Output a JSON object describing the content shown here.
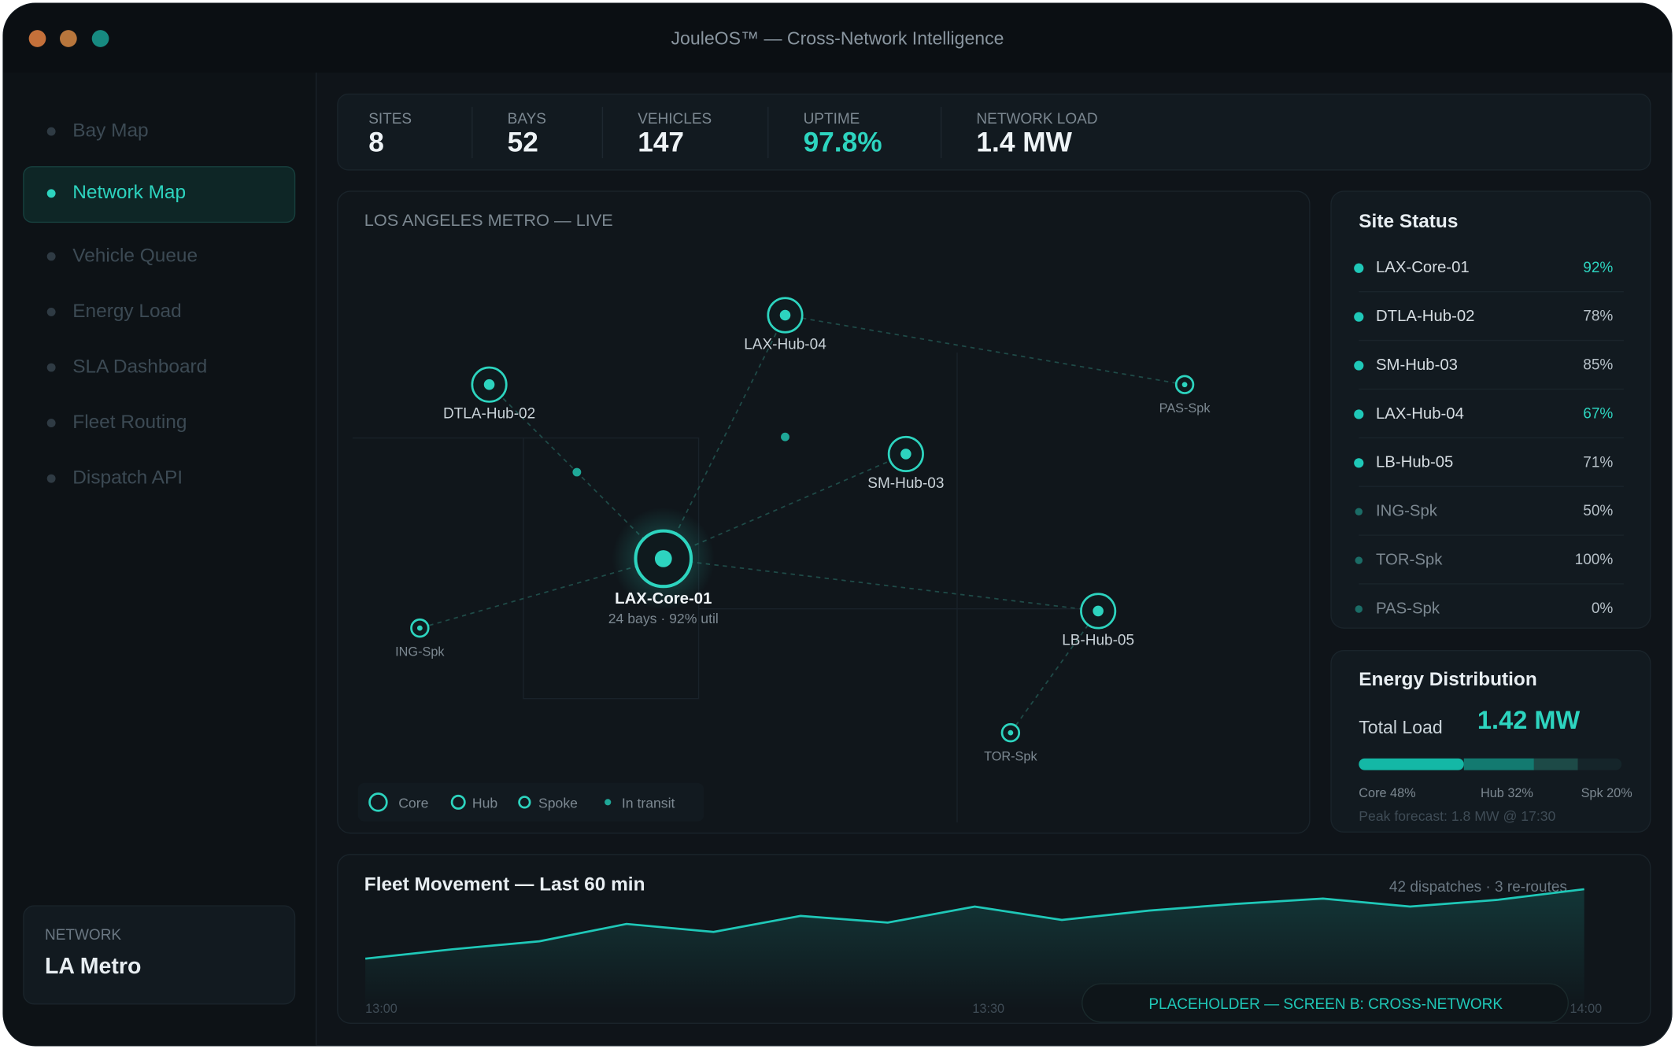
{
  "window": {
    "title": "JouleOS™ — Cross-Network Intelligence"
  },
  "sidebar": {
    "items": [
      "Bay Map",
      "Network Map",
      "Vehicle Queue",
      "Energy Load",
      "SLA Dashboard",
      "Fleet Routing",
      "Dispatch API"
    ],
    "active": 1,
    "network_card": {
      "label": "NETWORK",
      "value": "LA Metro"
    }
  },
  "kpis": [
    {
      "label": "SITES",
      "value": "8"
    },
    {
      "label": "BAYS",
      "value": "52"
    },
    {
      "label": "VEHICLES",
      "value": "147"
    },
    {
      "label": "UPTIME",
      "value": "97.8%",
      "highlight": true
    },
    {
      "label": "NETWORK LOAD",
      "value": "1.4 MW"
    }
  ],
  "map": {
    "title": "LOS ANGELES METRO — LIVE",
    "nodes": [
      {
        "label": "LAX-Core-01",
        "kind": "core",
        "detail": "24 bays · 92% util"
      },
      {
        "label": "LAX-Hub-04",
        "kind": "hub"
      },
      {
        "label": "DTLA-Hub-02",
        "kind": "hub"
      },
      {
        "label": "SM-Hub-03",
        "kind": "hub"
      },
      {
        "label": "LB-Hub-05",
        "kind": "hub"
      },
      {
        "label": "PAS-Spk",
        "kind": "spoke"
      },
      {
        "label": "ING-Spk",
        "kind": "spoke"
      },
      {
        "label": "TOR-Spk",
        "kind": "spoke"
      }
    ],
    "legend": [
      "Core",
      "Hub",
      "Spoke",
      "In transit"
    ]
  },
  "site_status": {
    "title": "Site Status",
    "rows": [
      {
        "name": "LAX-Core-01",
        "value": "92%",
        "highlight": true
      },
      {
        "name": "DTLA-Hub-02",
        "value": "78%"
      },
      {
        "name": "SM-Hub-03",
        "value": "85%"
      },
      {
        "name": "LAX-Hub-04",
        "value": "67%",
        "highlight": true
      },
      {
        "name": "LB-Hub-05",
        "value": "71%"
      },
      {
        "name": "ING-Spk",
        "value": "50%"
      },
      {
        "name": "TOR-Spk",
        "value": "100%"
      },
      {
        "name": "PAS-Spk",
        "value": "0%"
      }
    ]
  },
  "energy": {
    "title": "Energy Distribution",
    "total_label": "Total Load",
    "total_value": "1.42 MW",
    "segments": [
      {
        "label": "Core 48%",
        "value": 48,
        "color": "#14b8a6"
      },
      {
        "label": "Hub 32%",
        "value": 32,
        "color": "#137a70"
      },
      {
        "label": "Spk 20%",
        "value": 20,
        "color": "#1d4a47"
      }
    ],
    "forecast": "Peak forecast: 1.8 MW @ 17:30"
  },
  "chart_data": {
    "type": "line",
    "title": "Fleet Movement — Last 60 min",
    "annotation": "42 dispatches · 3 re-routes",
    "categories": [
      "13:00",
      null,
      null,
      null,
      null,
      null,
      null,
      "13:30",
      null,
      null,
      null,
      null,
      null,
      null,
      "14:00"
    ],
    "series": [
      {
        "color": "#1fc8b8",
        "values": [
          38,
          45,
          51,
          64,
          58,
          70,
          65,
          77,
          67,
          74,
          79,
          83,
          77,
          82,
          90
        ]
      }
    ],
    "ylim": [
      0,
      100
    ]
  },
  "placeholder": "PLACEHOLDER — SCREEN B: CROSS-NETWORK"
}
